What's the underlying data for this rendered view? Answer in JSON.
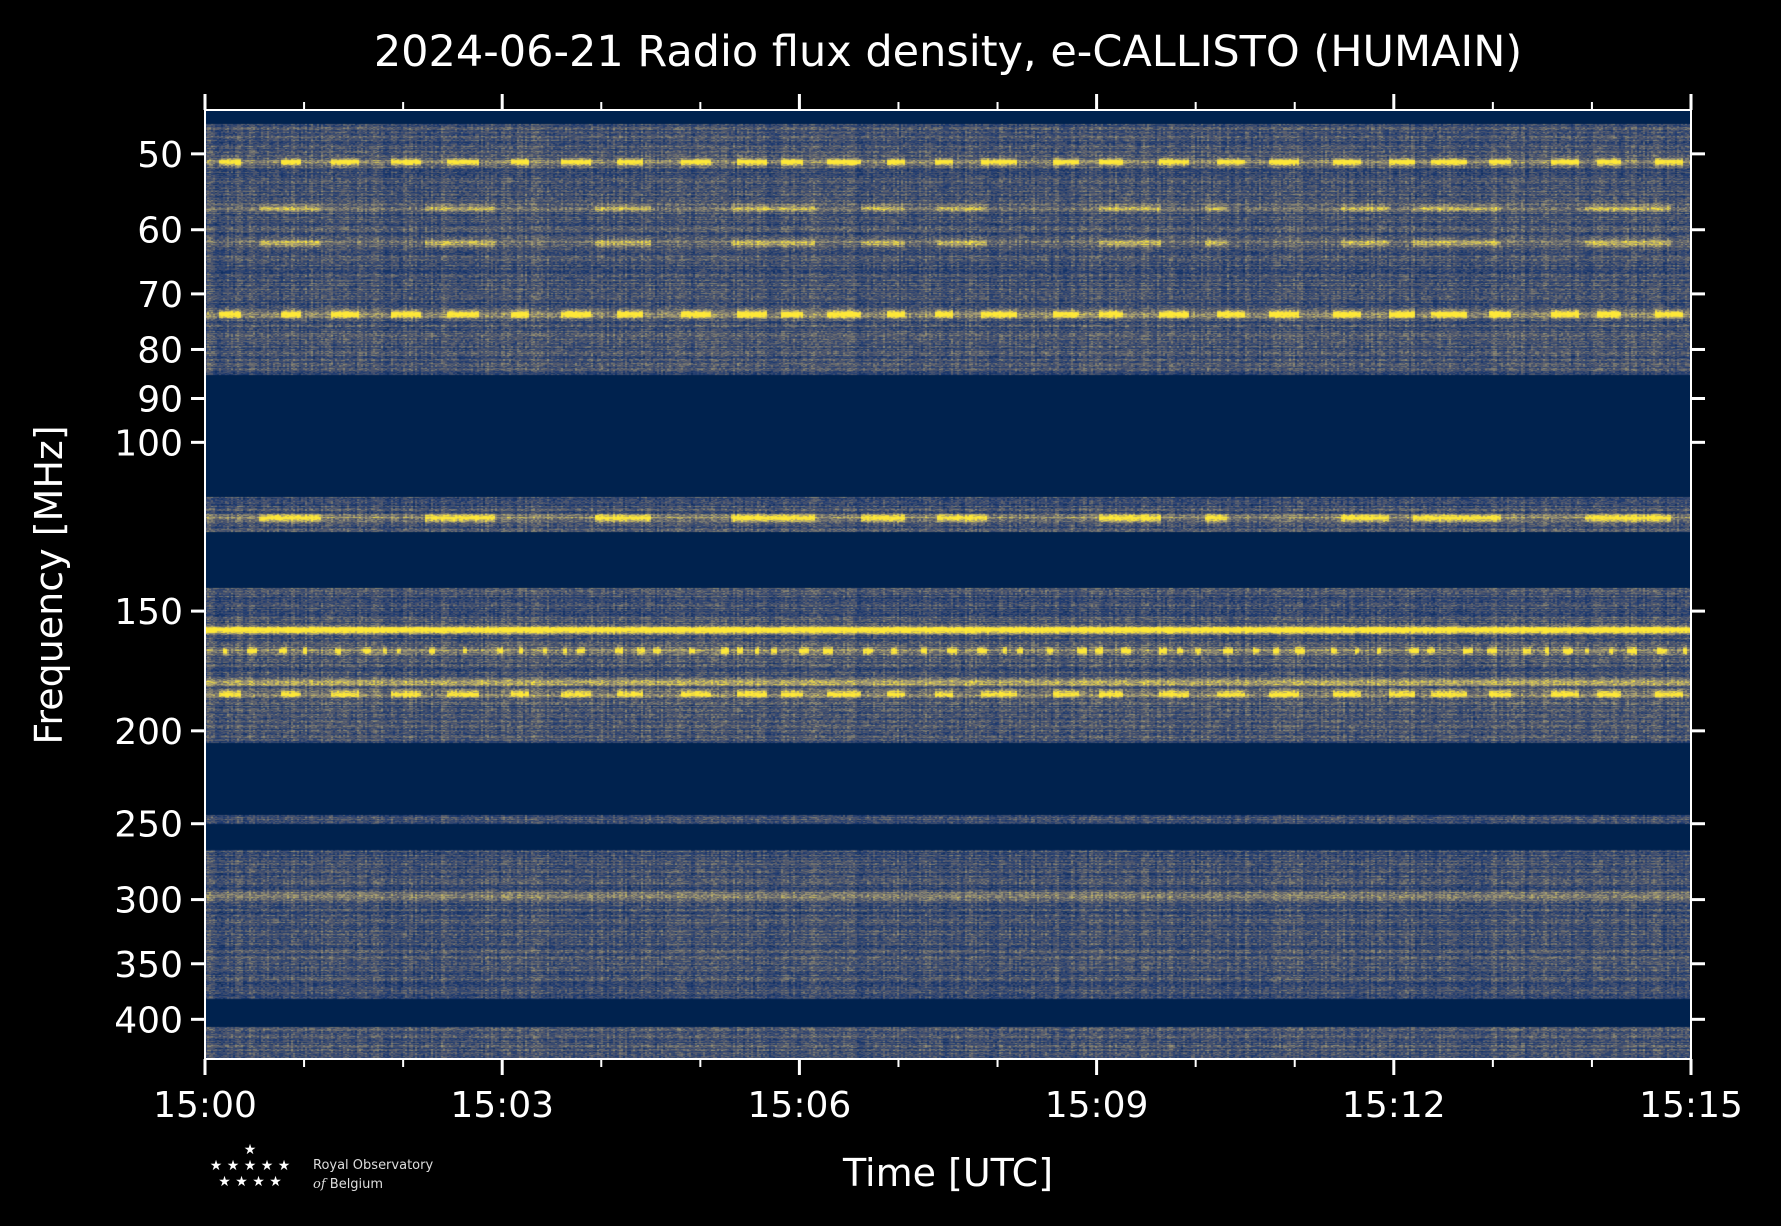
{
  "chart_data": {
    "type": "heatmap",
    "title": "2024-06-21 Radio flux density, e-CALLISTO (HUMAIN)",
    "xlabel": "Time [UTC]",
    "ylabel": "Frequency [MHz]",
    "x_range_minutes": [
      0,
      15
    ],
    "xticks": [
      {
        "minute": 0,
        "label": "15:00"
      },
      {
        "minute": 3,
        "label": "15:03"
      },
      {
        "minute": 6,
        "label": "15:06"
      },
      {
        "minute": 9,
        "label": "15:09"
      },
      {
        "minute": 12,
        "label": "15:12"
      },
      {
        "minute": 15,
        "label": "15:15"
      }
    ],
    "x_minor_tick_step_minutes": 1,
    "yscale": "log",
    "ylim": [
      45,
      440
    ],
    "y_inverted": true,
    "yticks": [
      50,
      60,
      70,
      80,
      90,
      100,
      150,
      200,
      250,
      300,
      350,
      400
    ],
    "colormap": [
      "#00224e",
      "#1d3a72",
      "#575c6d",
      "#a59c74",
      "#fee838"
    ],
    "empty_color": "#00224e",
    "noise_bands_mhz": [
      [
        46.5,
        85
      ],
      [
        114,
        124
      ],
      [
        142,
        206
      ],
      [
        245,
        250
      ],
      [
        266,
        381
      ],
      [
        407,
        440
      ]
    ],
    "bright_lines": [
      {
        "mhz": 51,
        "strength": 0.9,
        "pattern": "dashed"
      },
      {
        "mhz": 57,
        "strength": 0.45,
        "pattern": "patchy"
      },
      {
        "mhz": 62,
        "strength": 0.5,
        "pattern": "patchy"
      },
      {
        "mhz": 73.5,
        "strength": 0.95,
        "pattern": "dashed"
      },
      {
        "mhz": 120,
        "strength": 0.85,
        "pattern": "patchy"
      },
      {
        "mhz": 157,
        "strength": 0.95,
        "pattern": "continuous"
      },
      {
        "mhz": 165,
        "strength": 0.9,
        "pattern": "bursty"
      },
      {
        "mhz": 178,
        "strength": 0.5,
        "pattern": "continuous"
      },
      {
        "mhz": 183,
        "strength": 0.8,
        "pattern": "dashed"
      },
      {
        "mhz": 297,
        "strength": 0.4,
        "pattern": "continuous"
      }
    ]
  },
  "logo": {
    "line1": "Royal Observatory",
    "line2_italic": "of",
    "line2": "Belgium"
  }
}
